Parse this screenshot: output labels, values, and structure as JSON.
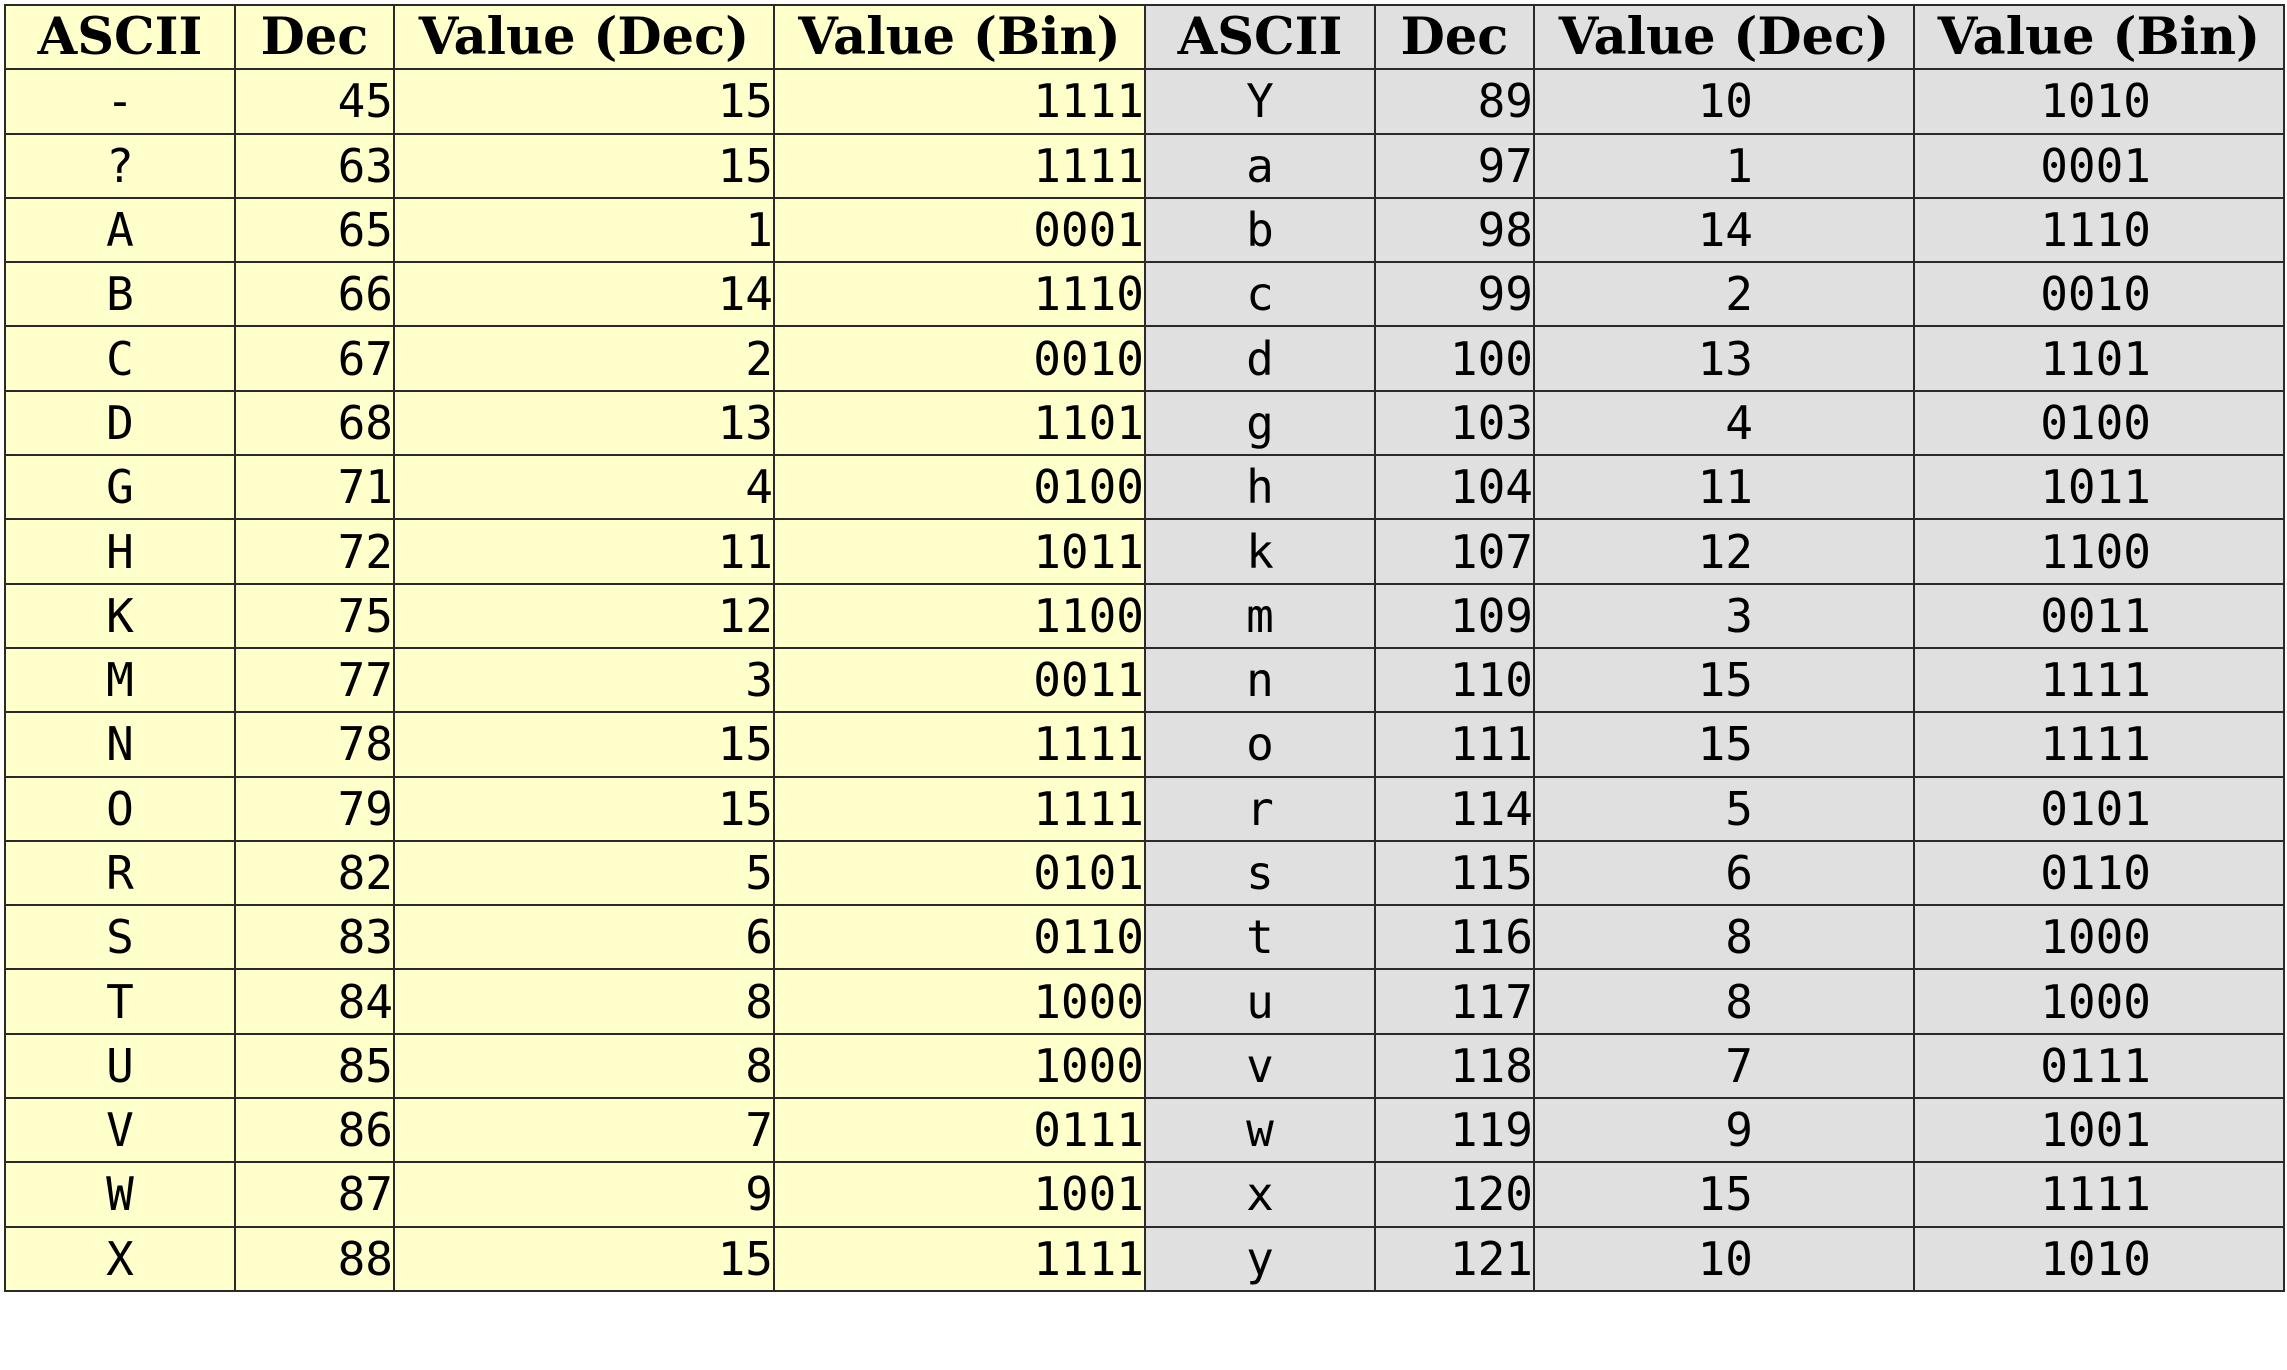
{
  "colors": {
    "left_bg": "#ffffcc",
    "right_bg": "#e0e0e0",
    "border": "#2a2a2a"
  },
  "headers": {
    "left": [
      "ASCII",
      "Dec",
      "Value (Dec)",
      "Value (Bin)"
    ],
    "right": [
      "ASCII",
      "Dec",
      "Value (Dec)",
      "Value (Bin)"
    ]
  },
  "left_rows": [
    {
      "ascii": "-",
      "dec": "45",
      "val": "15",
      "bin": "1111"
    },
    {
      "ascii": "?",
      "dec": "63",
      "val": "15",
      "bin": "1111"
    },
    {
      "ascii": "A",
      "dec": "65",
      "val": "1",
      "bin": "0001"
    },
    {
      "ascii": "B",
      "dec": "66",
      "val": "14",
      "bin": "1110"
    },
    {
      "ascii": "C",
      "dec": "67",
      "val": "2",
      "bin": "0010"
    },
    {
      "ascii": "D",
      "dec": "68",
      "val": "13",
      "bin": "1101"
    },
    {
      "ascii": "G",
      "dec": "71",
      "val": "4",
      "bin": "0100"
    },
    {
      "ascii": "H",
      "dec": "72",
      "val": "11",
      "bin": "1011"
    },
    {
      "ascii": "K",
      "dec": "75",
      "val": "12",
      "bin": "1100"
    },
    {
      "ascii": "M",
      "dec": "77",
      "val": "3",
      "bin": "0011"
    },
    {
      "ascii": "N",
      "dec": "78",
      "val": "15",
      "bin": "1111"
    },
    {
      "ascii": "O",
      "dec": "79",
      "val": "15",
      "bin": "1111"
    },
    {
      "ascii": "R",
      "dec": "82",
      "val": "5",
      "bin": "0101"
    },
    {
      "ascii": "S",
      "dec": "83",
      "val": "6",
      "bin": "0110"
    },
    {
      "ascii": "T",
      "dec": "84",
      "val": "8",
      "bin": "1000"
    },
    {
      "ascii": "U",
      "dec": "85",
      "val": "8",
      "bin": "1000"
    },
    {
      "ascii": "V",
      "dec": "86",
      "val": "7",
      "bin": "0111"
    },
    {
      "ascii": "W",
      "dec": "87",
      "val": "9",
      "bin": "1001"
    },
    {
      "ascii": "X",
      "dec": "88",
      "val": "15",
      "bin": "1111"
    }
  ],
  "right_rows": [
    {
      "ascii": "Y",
      "dec": "89",
      "val": "10",
      "bin": "1010"
    },
    {
      "ascii": "a",
      "dec": "97",
      "val": "1",
      "bin": "0001"
    },
    {
      "ascii": "b",
      "dec": "98",
      "val": "14",
      "bin": "1110"
    },
    {
      "ascii": "c",
      "dec": "99",
      "val": "2",
      "bin": "0010"
    },
    {
      "ascii": "d",
      "dec": "100",
      "val": "13",
      "bin": "1101"
    },
    {
      "ascii": "g",
      "dec": "103",
      "val": "4",
      "bin": "0100"
    },
    {
      "ascii": "h",
      "dec": "104",
      "val": "11",
      "bin": "1011"
    },
    {
      "ascii": "k",
      "dec": "107",
      "val": "12",
      "bin": "1100"
    },
    {
      "ascii": "m",
      "dec": "109",
      "val": "3",
      "bin": "0011"
    },
    {
      "ascii": "n",
      "dec": "110",
      "val": "15",
      "bin": "1111"
    },
    {
      "ascii": "o",
      "dec": "111",
      "val": "15",
      "bin": "1111"
    },
    {
      "ascii": "r",
      "dec": "114",
      "val": "5",
      "bin": "0101"
    },
    {
      "ascii": "s",
      "dec": "115",
      "val": "6",
      "bin": "0110"
    },
    {
      "ascii": "t",
      "dec": "116",
      "val": "8",
      "bin": "1000"
    },
    {
      "ascii": "u",
      "dec": "117",
      "val": "8",
      "bin": "1000"
    },
    {
      "ascii": "v",
      "dec": "118",
      "val": "7",
      "bin": "0111"
    },
    {
      "ascii": "w",
      "dec": "119",
      "val": "9",
      "bin": "1001"
    },
    {
      "ascii": "x",
      "dec": "120",
      "val": "15",
      "bin": "1111"
    },
    {
      "ascii": "y",
      "dec": "121",
      "val": "10",
      "bin": "1010"
    }
  ]
}
